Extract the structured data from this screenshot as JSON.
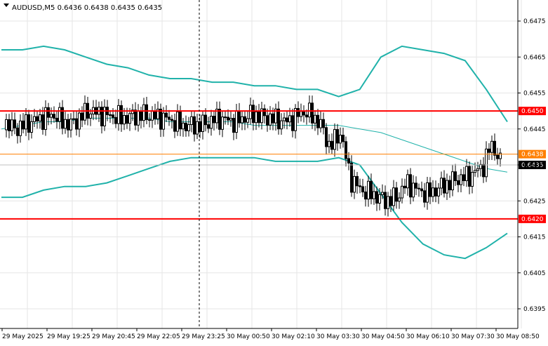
{
  "header": {
    "symbol_info": "AUDUSD,M5  0.6436 0.6438 0.6435 0.6435"
  },
  "chart_data": {
    "type": "candlestick",
    "symbol": "AUDUSD",
    "timeframe": "M5",
    "ylim": [
      0.63915,
      0.64795
    ],
    "y_ticks": [
      "0.6475",
      "0.6465",
      "0.6455",
      "0.6445",
      "0.6435",
      "0.6425",
      "0.6415",
      "0.6405",
      "0.6395"
    ],
    "x_ticks": [
      "29 May 2025",
      "29 May 19:25",
      "29 May 20:45",
      "29 May 22:05",
      "29 May 23:25",
      "30 May 00:50",
      "30 May 02:10",
      "30 May 03:30",
      "30 May 04:50",
      "30 May 06:10",
      "30 May 07:30",
      "30 May 08:50"
    ],
    "grid": true,
    "ohlc": {
      "segments": [
        [
          0,
          0.6449,
          0.6446
        ],
        [
          10,
          0.6447,
          0.6444
        ],
        [
          20,
          0.6446,
          0.6447
        ],
        [
          30,
          0.6447,
          0.6448
        ],
        [
          40,
          0.6449,
          0.6448
        ],
        [
          50,
          0.6449,
          0.6448
        ],
        [
          58,
          0.645,
          0.6447
        ],
        [
          65,
          0.6449,
          0.6447
        ],
        [
          72,
          0.6447,
          0.6446
        ],
        [
          80,
          0.6448,
          0.6447
        ],
        [
          88,
          0.6449,
          0.6448
        ],
        [
          96,
          0.6449,
          0.6441
        ],
        [
          110,
          0.6449,
          0.6442
        ],
        [
          122,
          0.6445,
          0.6449
        ],
        [
          133,
          0.645,
          0.6449
        ],
        [
          135,
          0.6449,
          0.645
        ],
        [
          140,
          0.645,
          0.6449
        ]
      ],
      "last": {
        "open": 0.6436,
        "high": 0.6438,
        "low": 0.6435,
        "close": 0.6435
      }
    },
    "bollinger": {
      "upper": [
        0.6467,
        0.6467,
        0.6468,
        0.6467,
        0.6465,
        0.6463,
        0.6462,
        0.646,
        0.6459,
        0.6459,
        0.6458,
        0.6458,
        0.6457,
        0.6457,
        0.6456,
        0.6456,
        0.6454,
        0.6456,
        0.6465,
        0.6468,
        0.6467,
        0.6466,
        0.6464,
        0.6456,
        0.6447
      ],
      "middle": [
        0.6445,
        0.6446,
        0.6447,
        0.6447,
        0.6448,
        0.6448,
        0.6448,
        0.6448,
        0.6447,
        0.6447,
        0.6447,
        0.6447,
        0.6446,
        0.6446,
        0.6446,
        0.6446,
        0.6446,
        0.6445,
        0.6444,
        0.6442,
        0.644,
        0.6438,
        0.6436,
        0.6434,
        0.6433
      ],
      "lower": [
        0.6426,
        0.6426,
        0.6428,
        0.6429,
        0.6429,
        0.643,
        0.6432,
        0.6434,
        0.6436,
        0.6437,
        0.6437,
        0.6437,
        0.6437,
        0.6436,
        0.6436,
        0.6436,
        0.6437,
        0.6435,
        0.6427,
        0.6419,
        0.6413,
        0.641,
        0.6409,
        0.6412,
        0.6416
      ]
    },
    "levels": [
      {
        "label": "0.6450",
        "value": 0.645,
        "kind": "resistance"
      },
      {
        "label": "0.6438",
        "value": 0.6438,
        "kind": "marker"
      },
      {
        "label": "0.6420",
        "value": 0.642,
        "kind": "support"
      }
    ],
    "bid_price": {
      "label": "0.6435",
      "value": 0.6435
    }
  },
  "colors": {
    "background": "#ffffff",
    "grid": "#e6e6e6",
    "candle": "#000000",
    "bollinger": "#20b2aa",
    "level_red": "#ff0000",
    "level_orange": "#ff7f00",
    "bid_line": "#c0c0c0",
    "bid_badge": "#000000"
  }
}
